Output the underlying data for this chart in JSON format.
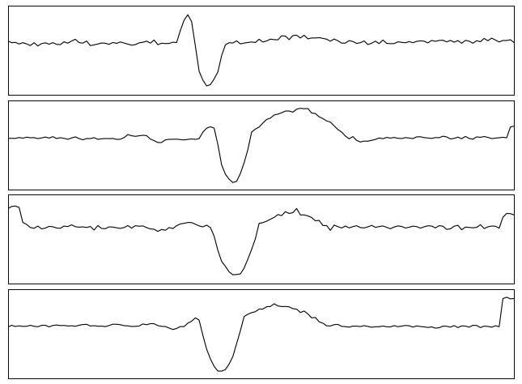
{
  "background_color": "#ffffff",
  "line_color": "#000000",
  "line_width": 0.8,
  "fig_width": 6.45,
  "fig_height": 4.74,
  "dpi": 100
}
